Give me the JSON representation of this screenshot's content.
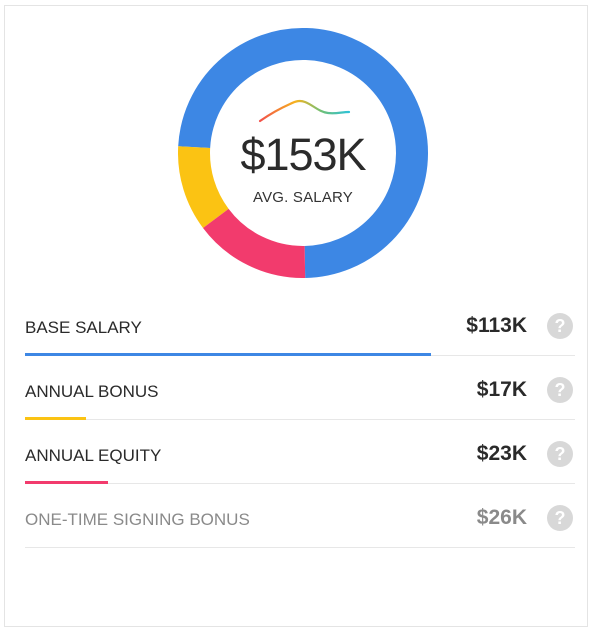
{
  "chart_data": {
    "type": "pie",
    "center_value": "$153K",
    "center_label": "AVG. SALARY",
    "slices": [
      {
        "label": "BASE SALARY",
        "value": 113,
        "display": "$113K",
        "color": "#3d87e4"
      },
      {
        "label": "ANNUAL BONUS",
        "value": 17,
        "display": "$17K",
        "color": "#fbc313"
      },
      {
        "label": "ANNUAL EQUITY",
        "value": 23,
        "display": "$23K",
        "color": "#f23b6d"
      },
      {
        "label": "ONE-TIME SIGNING BONUS",
        "value": 26,
        "display": "$26K",
        "color": "#b8b8b8",
        "muted": true
      }
    ]
  },
  "help_glyph": "?"
}
